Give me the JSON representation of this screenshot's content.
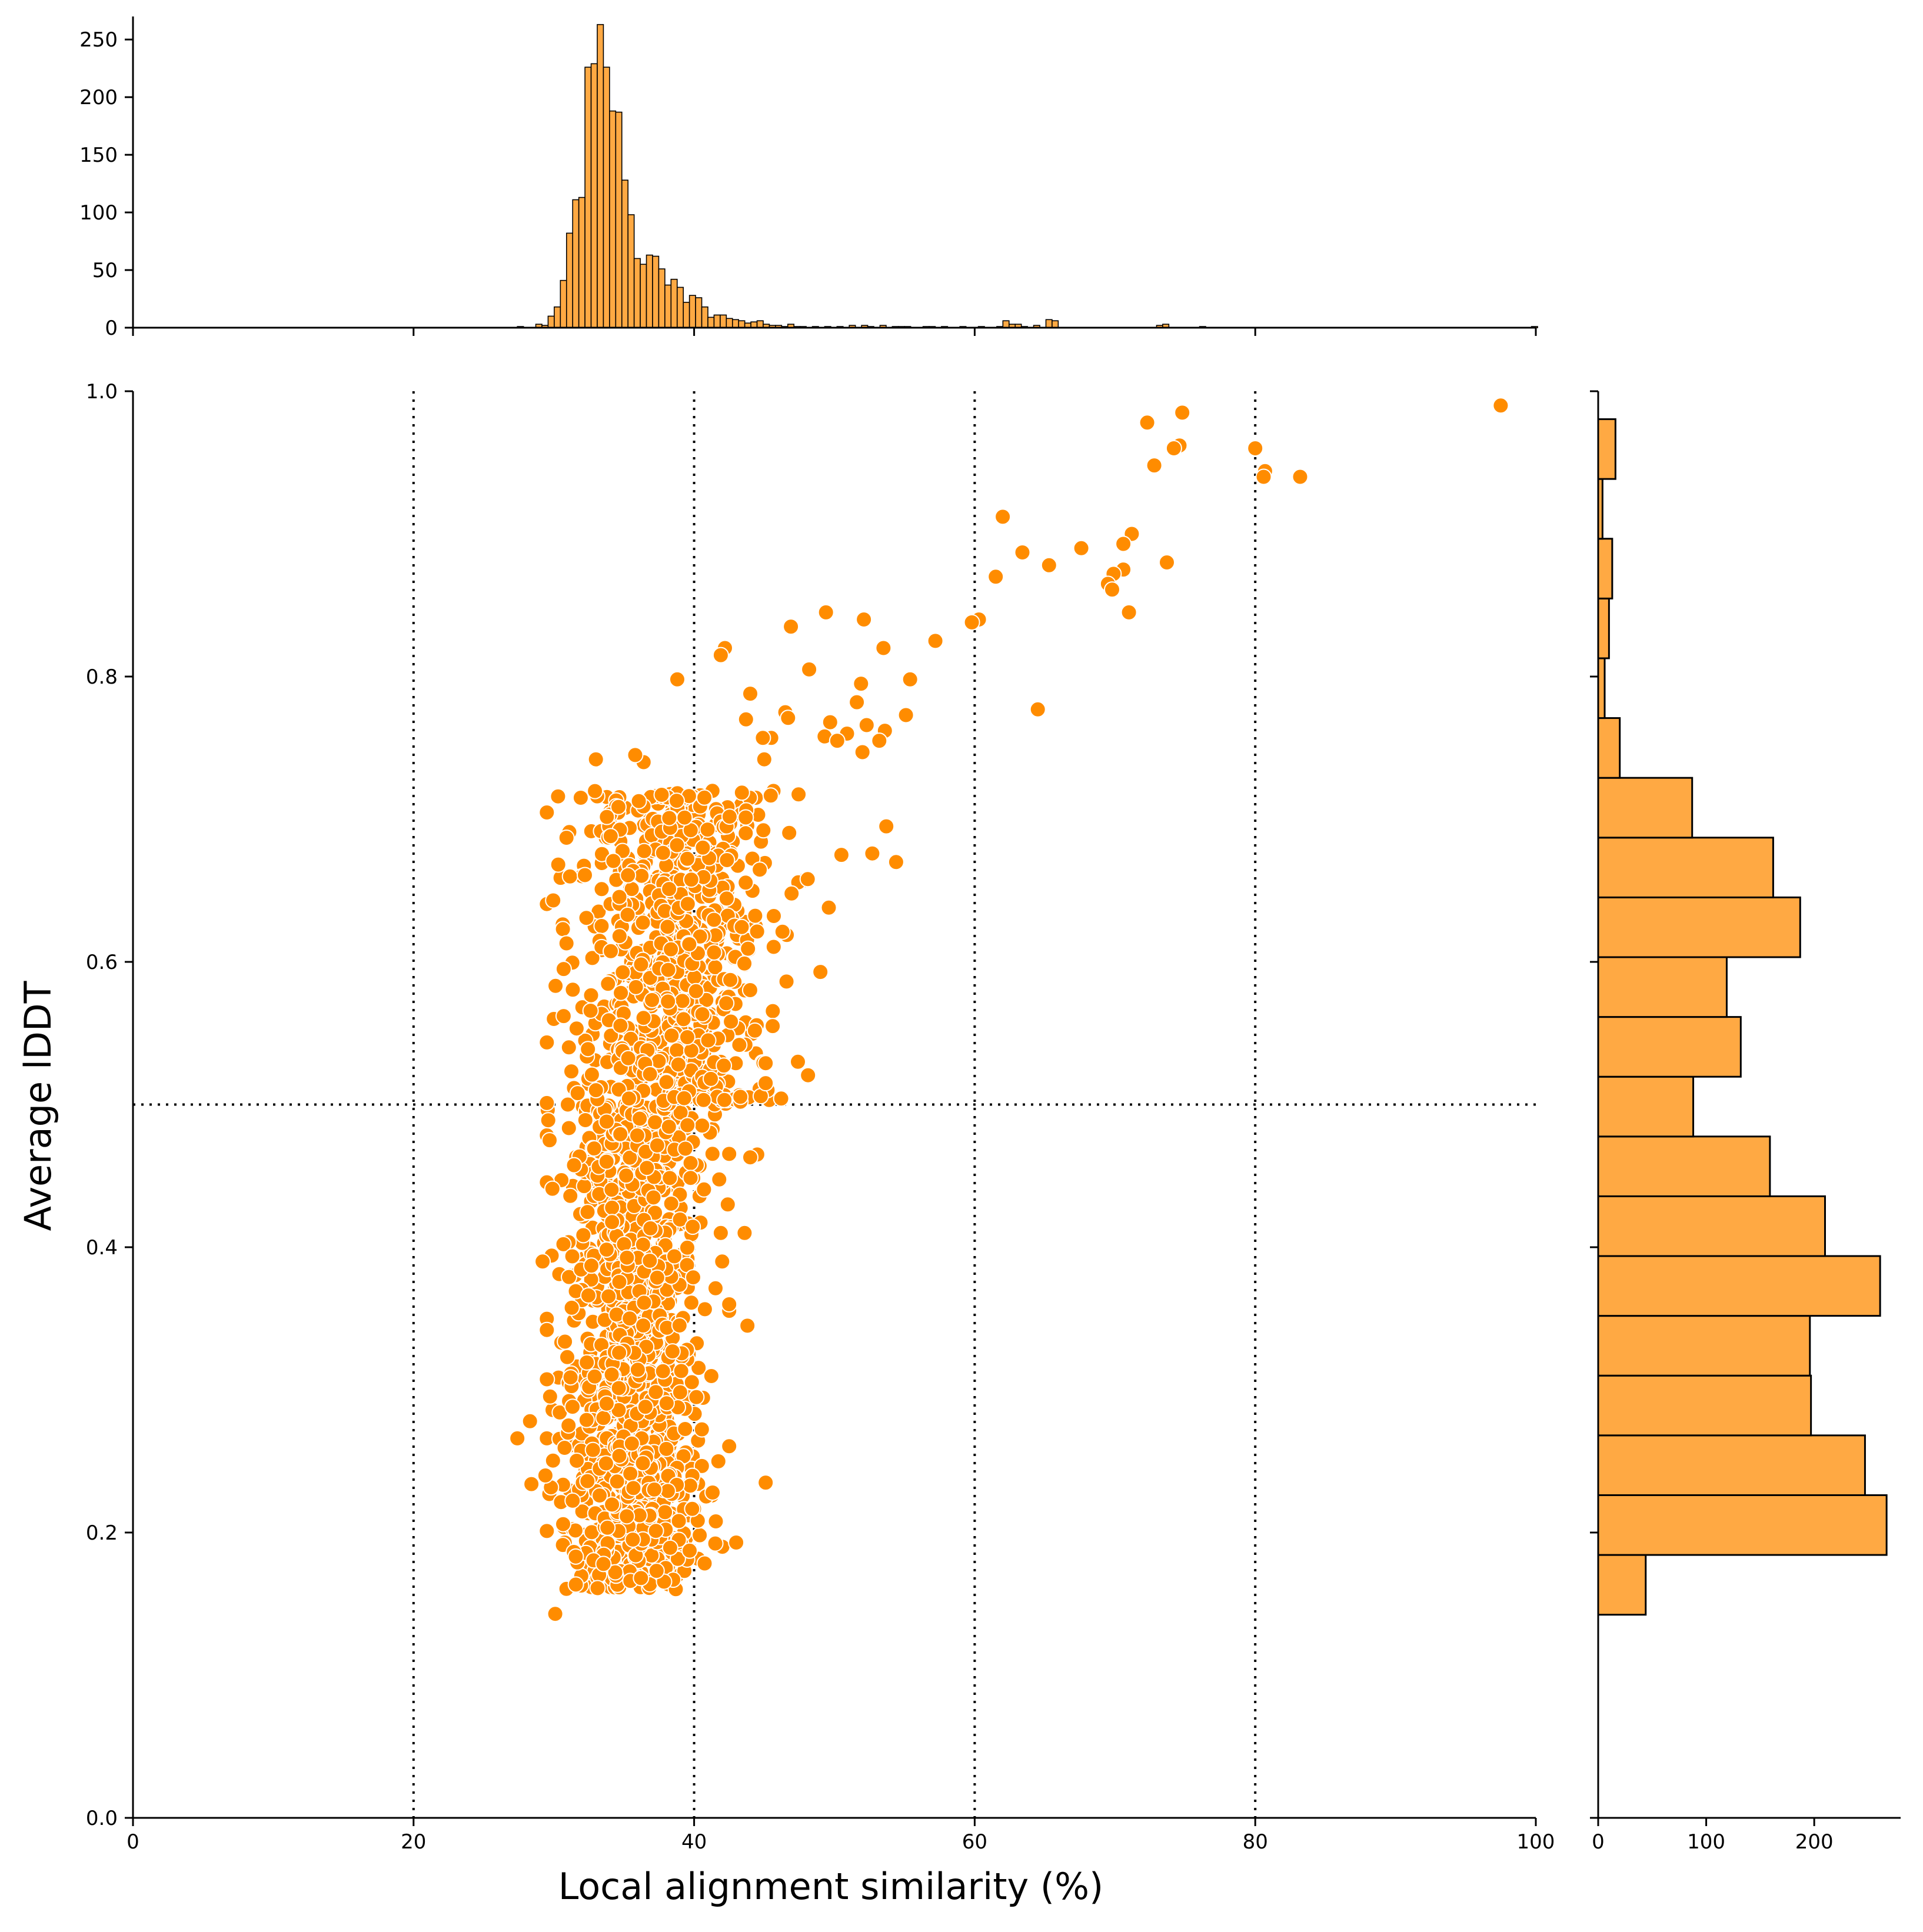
{
  "chart_data": {
    "type": "scatter",
    "xlabel": "Local alignment similarity (%)",
    "ylabel": "Average lDDT",
    "xlim": [
      0,
      100
    ],
    "ylim": [
      0,
      1.0
    ],
    "x_ticks": [
      "0",
      "20",
      "40",
      "60",
      "80",
      "100"
    ],
    "y_ticks": [
      "0.0",
      "0.2",
      "0.4",
      "0.6",
      "0.8",
      "1.0"
    ],
    "reference_lines": {
      "vertical": [
        20,
        40,
        60,
        80
      ],
      "horizontal": [
        0.5
      ],
      "style": "dotted"
    },
    "marker_color": "#FF8C00",
    "hist_fill": "#FFA943",
    "point_count_approx": 2100,
    "clusters": [
      {
        "description": "dense low cloud",
        "x_mean": 35.5,
        "x_sd": 2.4,
        "y_min": 0.16,
        "y_max": 0.5,
        "n": 1200
      },
      {
        "description": "dense upper cloud",
        "x_mean": 38.5,
        "x_sd": 3.4,
        "y_min": 0.5,
        "y_max": 0.72,
        "n": 750
      }
    ],
    "sparse_points": [
      [
        97.5,
        0.99
      ],
      [
        83.2,
        0.94
      ],
      [
        80.7,
        0.944
      ],
      [
        80.6,
        0.94
      ],
      [
        80.0,
        0.96
      ],
      [
        74.8,
        0.985
      ],
      [
        74.6,
        0.962
      ],
      [
        74.2,
        0.96
      ],
      [
        72.8,
        0.948
      ],
      [
        72.3,
        0.978
      ],
      [
        73.7,
        0.88
      ],
      [
        71.2,
        0.9
      ],
      [
        70.6,
        0.893
      ],
      [
        70.6,
        0.875
      ],
      [
        71.0,
        0.845
      ],
      [
        69.9,
        0.872
      ],
      [
        69.5,
        0.865
      ],
      [
        69.8,
        0.861
      ],
      [
        67.6,
        0.89
      ],
      [
        65.3,
        0.878
      ],
      [
        63.4,
        0.887
      ],
      [
        62.0,
        0.912
      ],
      [
        61.5,
        0.87
      ],
      [
        64.5,
        0.777
      ],
      [
        60.3,
        0.84
      ],
      [
        59.8,
        0.838
      ],
      [
        57.2,
        0.825
      ],
      [
        55.4,
        0.798
      ],
      [
        55.1,
        0.773
      ],
      [
        53.6,
        0.762
      ],
      [
        53.2,
        0.755
      ],
      [
        53.5,
        0.82
      ],
      [
        52.1,
        0.84
      ],
      [
        51.9,
        0.795
      ],
      [
        51.6,
        0.782
      ],
      [
        52.0,
        0.747
      ],
      [
        52.3,
        0.766
      ],
      [
        50.9,
        0.76
      ],
      [
        49.7,
        0.768
      ],
      [
        49.4,
        0.845
      ],
      [
        49.3,
        0.758
      ],
      [
        50.2,
        0.755
      ],
      [
        46.9,
        0.835
      ],
      [
        48.2,
        0.805
      ],
      [
        46.5,
        0.775
      ],
      [
        46.7,
        0.771
      ],
      [
        45.5,
        0.757
      ],
      [
        44.9,
        0.757
      ],
      [
        45.0,
        0.742
      ],
      [
        44.0,
        0.788
      ],
      [
        43.7,
        0.77
      ],
      [
        42.2,
        0.82
      ],
      [
        41.9,
        0.815
      ],
      [
        38.8,
        0.798
      ],
      [
        36.4,
        0.74
      ],
      [
        35.8,
        0.745
      ],
      [
        33.0,
        0.742
      ],
      [
        30.3,
        0.716
      ],
      [
        30.9,
        0.687
      ],
      [
        54.4,
        0.67
      ],
      [
        53.7,
        0.695
      ],
      [
        52.7,
        0.676
      ],
      [
        50.5,
        0.675
      ],
      [
        49.6,
        0.638
      ],
      [
        48.1,
        0.658
      ],
      [
        47.4,
        0.53
      ],
      [
        45.6,
        0.555
      ],
      [
        45.1,
        0.529
      ],
      [
        45.1,
        0.515
      ],
      [
        44.5,
        0.465
      ],
      [
        44.0,
        0.463
      ],
      [
        45.1,
        0.235
      ],
      [
        43.0,
        0.193
      ],
      [
        27.4,
        0.266
      ],
      [
        28.3,
        0.278
      ],
      [
        28.4,
        0.234
      ],
      [
        29.4,
        0.24
      ],
      [
        30.1,
        0.143
      ],
      [
        29.2,
        0.39
      ],
      [
        29.7,
        0.475
      ],
      [
        29.9,
        0.441
      ],
      [
        30.0,
        0.56
      ],
      [
        30.7,
        0.562
      ],
      [
        30.7,
        0.595
      ],
      [
        30.9,
        0.613
      ],
      [
        29.6,
        0.489
      ],
      [
        31.0,
        0.5
      ],
      [
        31.7,
        0.508
      ],
      [
        43.6,
        0.41
      ],
      [
        43.8,
        0.345
      ],
      [
        42.5,
        0.36
      ],
      [
        42.0,
        0.39
      ],
      [
        41.9,
        0.41
      ],
      [
        42.4,
        0.43
      ]
    ],
    "top_histogram": {
      "ylim": [
        0,
        270
      ],
      "y_ticks": [
        "0",
        "50",
        "100",
        "150",
        "200",
        "250"
      ],
      "x_range": [
        27.4,
        97.5
      ],
      "bins": 160,
      "bin_values": [
        1,
        0,
        0,
        3,
        2,
        10,
        18,
        41,
        82,
        111,
        113,
        226,
        229,
        263,
        226,
        188,
        187,
        128,
        98,
        60,
        55,
        63,
        62,
        51,
        37,
        42,
        35,
        22,
        28,
        26,
        18,
        9,
        11,
        11,
        8,
        7,
        6,
        4,
        5,
        6,
        3,
        2,
        2,
        1,
        3,
        1,
        1,
        0,
        1,
        0,
        1,
        0,
        1,
        0,
        2,
        0,
        2,
        1,
        0,
        2,
        0,
        1,
        1,
        1,
        0,
        0,
        1,
        1,
        0,
        1,
        0,
        0,
        1,
        0,
        0,
        1,
        0,
        0,
        1,
        6,
        3,
        3,
        1,
        0,
        2,
        0,
        7,
        6,
        0,
        0,
        0,
        0,
        0,
        0,
        0,
        0,
        0,
        0,
        0,
        0,
        0,
        0,
        0,
        0,
        2,
        3,
        0,
        0,
        0,
        0,
        0,
        1,
        0,
        0,
        0,
        0,
        0,
        0,
        0,
        0,
        0,
        0,
        0,
        0,
        0,
        0,
        0,
        0,
        0,
        0,
        0,
        0,
        0,
        0,
        0,
        0,
        0,
        0,
        0,
        0,
        0,
        0,
        0,
        0,
        0,
        0,
        0,
        0,
        0,
        0,
        0,
        0,
        0,
        0,
        0,
        0,
        0,
        0,
        0,
        0,
        0,
        0,
        0,
        0,
        0,
        1
      ]
    },
    "right_histogram": {
      "xlim": [
        0,
        280
      ],
      "x_ticks": [
        "0",
        "100",
        "200"
      ],
      "bins": [
        {
          "y_low": 0.1424,
          "y_high": 0.1843,
          "count": 44
        },
        {
          "y_low": 0.1843,
          "y_high": 0.2262,
          "count": 267
        },
        {
          "y_low": 0.2262,
          "y_high": 0.2681,
          "count": 247
        },
        {
          "y_low": 0.2681,
          "y_high": 0.31,
          "count": 197
        },
        {
          "y_low": 0.31,
          "y_high": 0.3519,
          "count": 196
        },
        {
          "y_low": 0.3519,
          "y_high": 0.3938,
          "count": 261
        },
        {
          "y_low": 0.3938,
          "y_high": 0.4357,
          "count": 210
        },
        {
          "y_low": 0.4357,
          "y_high": 0.4776,
          "count": 159
        },
        {
          "y_low": 0.4776,
          "y_high": 0.5195,
          "count": 88
        },
        {
          "y_low": 0.5195,
          "y_high": 0.5614,
          "count": 132
        },
        {
          "y_low": 0.5614,
          "y_high": 0.6033,
          "count": 119
        },
        {
          "y_low": 0.6033,
          "y_high": 0.6452,
          "count": 187
        },
        {
          "y_low": 0.6452,
          "y_high": 0.6871,
          "count": 162
        },
        {
          "y_low": 0.6871,
          "y_high": 0.729,
          "count": 87
        },
        {
          "y_low": 0.729,
          "y_high": 0.7709,
          "count": 20
        },
        {
          "y_low": 0.7709,
          "y_high": 0.8128,
          "count": 6
        },
        {
          "y_low": 0.8128,
          "y_high": 0.8547,
          "count": 10
        },
        {
          "y_low": 0.8547,
          "y_high": 0.8966,
          "count": 13
        },
        {
          "y_low": 0.8966,
          "y_high": 0.9385,
          "count": 4
        },
        {
          "y_low": 0.9385,
          "y_high": 0.9804,
          "count": 16
        }
      ]
    }
  }
}
